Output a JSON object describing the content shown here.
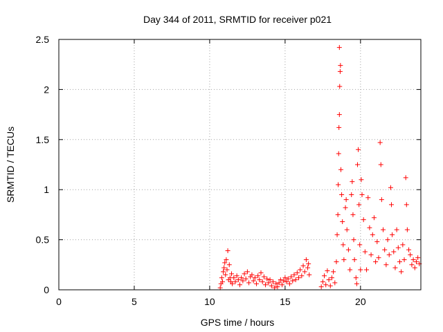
{
  "colors": {
    "series": "#ff0000",
    "axis": "#000000",
    "grid": "#a0a0a0",
    "background": "#ffffff"
  },
  "chart_data": {
    "type": "scatter",
    "title": "Day 344 of 2011, SRMTID for receiver p021",
    "xlabel": "GPS time / hours",
    "ylabel": "SRMTID / TECUs",
    "xlim": [
      0,
      24
    ],
    "ylim": [
      0,
      2.5
    ],
    "grid": true,
    "marker": "+",
    "x_ticks": [
      0,
      5,
      10,
      15,
      20
    ],
    "x_tick_labels": [
      "0",
      "5",
      "10",
      "15",
      "20"
    ],
    "y_ticks": [
      0,
      0.5,
      1,
      1.5,
      2,
      2.5
    ],
    "y_tick_labels": [
      "0",
      "0.5",
      "1",
      "1.5",
      "2",
      "2.5"
    ],
    "series": [
      {
        "name": "SRMTID",
        "points": [
          [
            10.7,
            0.02
          ],
          [
            10.75,
            0.06
          ],
          [
            10.8,
            0.12
          ],
          [
            10.85,
            0.08
          ],
          [
            10.9,
            0.18
          ],
          [
            10.95,
            0.22
          ],
          [
            11.0,
            0.27
          ],
          [
            11.05,
            0.15
          ],
          [
            11.1,
            0.3
          ],
          [
            11.15,
            0.2
          ],
          [
            11.2,
            0.39
          ],
          [
            11.25,
            0.1
          ],
          [
            11.3,
            0.25
          ],
          [
            11.35,
            0.12
          ],
          [
            11.4,
            0.08
          ],
          [
            11.45,
            0.16
          ],
          [
            11.5,
            0.06
          ],
          [
            11.6,
            0.12
          ],
          [
            11.7,
            0.08
          ],
          [
            11.8,
            0.14
          ],
          [
            11.9,
            0.1
          ],
          [
            12.0,
            0.05
          ],
          [
            12.1,
            0.12
          ],
          [
            12.2,
            0.09
          ],
          [
            12.3,
            0.16
          ],
          [
            12.4,
            0.11
          ],
          [
            12.5,
            0.18
          ],
          [
            12.6,
            0.07
          ],
          [
            12.7,
            0.13
          ],
          [
            12.8,
            0.15
          ],
          [
            12.9,
            0.09
          ],
          [
            13.0,
            0.12
          ],
          [
            13.1,
            0.06
          ],
          [
            13.2,
            0.14
          ],
          [
            13.3,
            0.1
          ],
          [
            13.4,
            0.17
          ],
          [
            13.5,
            0.08
          ],
          [
            13.6,
            0.13
          ],
          [
            13.7,
            0.05
          ],
          [
            13.8,
            0.11
          ],
          [
            13.9,
            0.07
          ],
          [
            14.0,
            0.1
          ],
          [
            14.1,
            0.04
          ],
          [
            14.2,
            0.08
          ],
          [
            14.3,
            0.02
          ],
          [
            14.4,
            0.06
          ],
          [
            14.5,
            0.03
          ],
          [
            14.6,
            0.07
          ],
          [
            14.7,
            0.1
          ],
          [
            14.8,
            0.05
          ],
          [
            14.9,
            0.09
          ],
          [
            15.0,
            0.12
          ],
          [
            15.1,
            0.08
          ],
          [
            15.2,
            0.11
          ],
          [
            15.3,
            0.06
          ],
          [
            15.4,
            0.13
          ],
          [
            15.5,
            0.09
          ],
          [
            15.6,
            0.15
          ],
          [
            15.7,
            0.1
          ],
          [
            15.8,
            0.17
          ],
          [
            15.9,
            0.12
          ],
          [
            16.0,
            0.2
          ],
          [
            16.1,
            0.14
          ],
          [
            16.2,
            0.24
          ],
          [
            16.3,
            0.18
          ],
          [
            16.4,
            0.3
          ],
          [
            16.5,
            0.22
          ],
          [
            16.55,
            0.26
          ],
          [
            16.6,
            0.15
          ],
          [
            17.4,
            0.03
          ],
          [
            17.5,
            0.08
          ],
          [
            17.6,
            0.14
          ],
          [
            17.7,
            0.05
          ],
          [
            17.8,
            0.19
          ],
          [
            17.9,
            0.1
          ],
          [
            18.0,
            0.04
          ],
          [
            18.1,
            0.12
          ],
          [
            18.2,
            0.18
          ],
          [
            18.3,
            0.07
          ],
          [
            18.4,
            0.28
          ],
          [
            18.45,
            0.55
          ],
          [
            18.5,
            0.75
          ],
          [
            18.52,
            1.05
          ],
          [
            18.55,
            1.36
          ],
          [
            18.57,
            1.62
          ],
          [
            18.6,
            1.75
          ],
          [
            18.62,
            2.03
          ],
          [
            18.65,
            2.18
          ],
          [
            18.67,
            2.24
          ],
          [
            18.6,
            2.42
          ],
          [
            18.7,
            1.2
          ],
          [
            18.75,
            0.95
          ],
          [
            18.8,
            0.68
          ],
          [
            18.85,
            0.45
          ],
          [
            18.9,
            0.3
          ],
          [
            19.0,
            0.82
          ],
          [
            19.05,
            0.9
          ],
          [
            19.1,
            0.6
          ],
          [
            19.2,
            0.4
          ],
          [
            19.3,
            0.2
          ],
          [
            19.4,
            0.95
          ],
          [
            19.45,
            1.08
          ],
          [
            19.5,
            0.75
          ],
          [
            19.55,
            0.5
          ],
          [
            19.6,
            0.3
          ],
          [
            19.7,
            0.12
          ],
          [
            19.75,
            0.06
          ],
          [
            19.8,
            1.25
          ],
          [
            19.85,
            1.4
          ],
          [
            19.9,
            0.85
          ],
          [
            19.95,
            0.45
          ],
          [
            20.0,
            0.2
          ],
          [
            20.05,
            1.1
          ],
          [
            20.1,
            0.95
          ],
          [
            20.2,
            0.7
          ],
          [
            20.3,
            0.38
          ],
          [
            20.4,
            0.2
          ],
          [
            20.5,
            0.92
          ],
          [
            20.6,
            0.62
          ],
          [
            20.7,
            0.35
          ],
          [
            20.8,
            0.55
          ],
          [
            20.9,
            0.72
          ],
          [
            21.0,
            0.28
          ],
          [
            21.1,
            0.48
          ],
          [
            21.2,
            0.32
          ],
          [
            21.3,
            1.47
          ],
          [
            21.35,
            1.25
          ],
          [
            21.4,
            0.9
          ],
          [
            21.5,
            0.6
          ],
          [
            21.6,
            0.4
          ],
          [
            21.7,
            0.25
          ],
          [
            21.8,
            0.5
          ],
          [
            21.9,
            0.35
          ],
          [
            22.0,
            1.02
          ],
          [
            22.05,
            0.85
          ],
          [
            22.1,
            0.55
          ],
          [
            22.2,
            0.38
          ],
          [
            22.3,
            0.22
          ],
          [
            22.4,
            0.6
          ],
          [
            22.5,
            0.42
          ],
          [
            22.6,
            0.28
          ],
          [
            22.7,
            0.18
          ],
          [
            22.8,
            0.45
          ],
          [
            22.9,
            0.3
          ],
          [
            23.0,
            1.12
          ],
          [
            23.05,
            0.85
          ],
          [
            23.1,
            0.6
          ],
          [
            23.2,
            0.4
          ],
          [
            23.3,
            0.35
          ],
          [
            23.4,
            0.25
          ],
          [
            23.5,
            0.3
          ],
          [
            23.6,
            0.22
          ],
          [
            23.7,
            0.28
          ],
          [
            23.8,
            0.32
          ],
          [
            23.9,
            0.26
          ]
        ]
      }
    ]
  }
}
